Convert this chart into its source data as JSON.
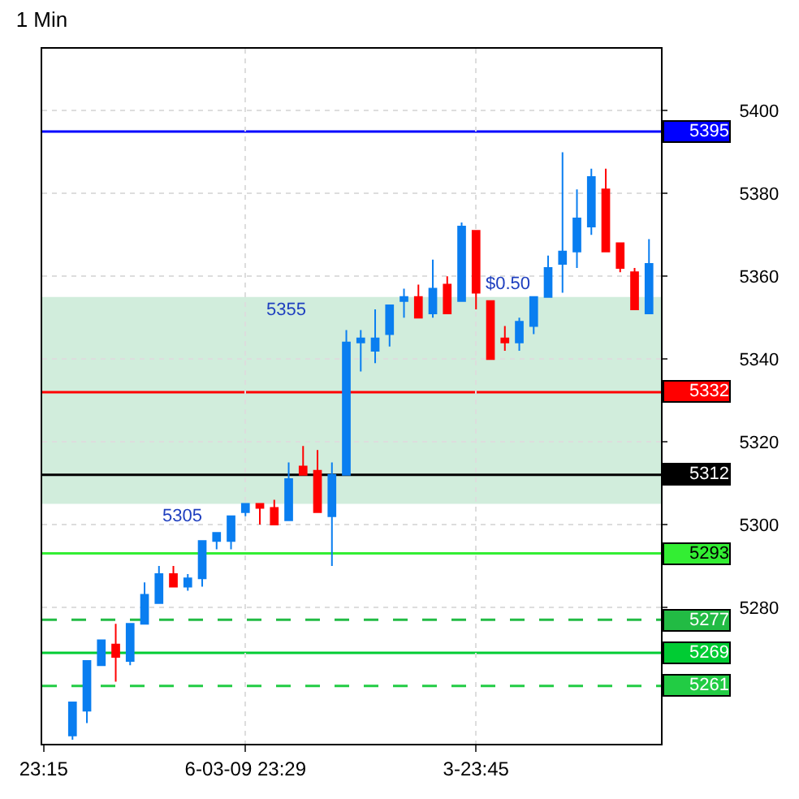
{
  "chart_data": {
    "type": "candlestick",
    "title": "1 Min",
    "categories": [
      "23:15",
      null,
      null,
      null,
      null,
      null,
      null,
      null,
      null,
      null,
      null,
      null,
      null,
      null,
      "6-03-09 23:29",
      null,
      null,
      null,
      null,
      null,
      null,
      null,
      null,
      null,
      null,
      null,
      null,
      null,
      null,
      null,
      "3-23:45",
      null,
      null,
      null,
      null,
      null,
      null,
      null,
      null,
      null,
      null,
      null,
      null
    ],
    "ohlc": [
      null,
      null,
      [
        5249,
        5257,
        5248,
        5257
      ],
      [
        5255,
        5267,
        5252,
        5267
      ],
      [
        5266,
        5272,
        5266,
        5272
      ],
      [
        5271,
        5276,
        5262,
        5268
      ],
      [
        5267,
        5276,
        5266,
        5276
      ],
      [
        5276,
        5286,
        5276,
        5283
      ],
      [
        5281,
        5290,
        5281,
        5288
      ],
      [
        5288,
        5290,
        5285,
        5285
      ],
      [
        5285,
        5288,
        5284,
        5287
      ],
      [
        5287,
        5296,
        5285,
        5296
      ],
      [
        5296,
        5298,
        5294,
        5298
      ],
      [
        5296,
        5302,
        5294,
        5302
      ],
      [
        5303,
        5305,
        5302,
        5305
      ],
      [
        5305,
        5305,
        5300,
        5304
      ],
      [
        5304,
        5306,
        5300,
        5300
      ],
      [
        5301,
        5315,
        5301,
        5311
      ],
      [
        5314,
        5319,
        5312,
        5312
      ],
      [
        5313,
        5318,
        5303,
        5303
      ],
      [
        5302,
        5315,
        5290,
        5312
      ],
      [
        5312,
        5347,
        5312,
        5344
      ],
      [
        5344,
        5347,
        5337,
        5345
      ],
      [
        5342,
        5352,
        5339,
        5345
      ],
      [
        5346,
        5353,
        5343,
        5353
      ],
      [
        5354,
        5357,
        5350,
        5355
      ],
      [
        5355,
        5358,
        5350,
        5350
      ],
      [
        5351,
        5364,
        5350,
        5357
      ],
      [
        5358,
        5360,
        5351,
        5351
      ],
      [
        5354,
        5373,
        5354,
        5372
      ],
      [
        5371,
        5371,
        5352,
        5356
      ],
      [
        5354,
        5354,
        5340,
        5340
      ],
      [
        5345,
        5348,
        5342,
        5344
      ],
      [
        5344,
        5350,
        5342,
        5349
      ],
      [
        5348,
        5355,
        5346,
        5355
      ],
      [
        5355,
        5365,
        5355,
        5362
      ],
      [
        5363,
        5390,
        5356,
        5366
      ],
      [
        5366,
        5381,
        5362,
        5374
      ],
      [
        5372,
        5386,
        5370,
        5384
      ],
      [
        5381,
        5386,
        5366,
        5366
      ],
      [
        5368,
        5368,
        5361,
        5362
      ],
      [
        5361,
        5362,
        5352,
        5352
      ],
      [
        5351,
        5369,
        5351,
        5363
      ]
    ],
    "colors": [
      null,
      null,
      "#0a7ef0",
      "#0a7ef0",
      "#0a7ef0",
      "#ff0000",
      "#0a7ef0",
      "#0a7ef0",
      "#0a7ef0",
      "#ff0000",
      "#0a7ef0",
      "#0a7ef0",
      "#0a7ef0",
      "#0a7ef0",
      "#0a7ef0",
      "#ff0000",
      "#ff0000",
      "#0a7ef0",
      "#ff0000",
      "#ff0000",
      "#0a7ef0",
      "#0a7ef0",
      "#0a7ef0",
      "#0a7ef0",
      "#0a7ef0",
      "#0a7ef0",
      "#ff0000",
      "#0a7ef0",
      "#ff0000",
      "#0a7ef0",
      "#ff0000",
      "#ff0000",
      "#ff0000",
      "#0a7ef0",
      "#0a7ef0",
      "#0a7ef0",
      "#0a7ef0",
      "#0a7ef0",
      "#0a7ef0",
      "#ff0000",
      "#ff0000",
      "#ff0000",
      "#0a7ef0"
    ],
    "ylim": [
      5247,
      5415
    ],
    "yticks": [
      5280,
      5300,
      5320,
      5340,
      5360,
      5380,
      5400
    ],
    "grid": true,
    "ref_lines": [
      {
        "axis": "y",
        "value": 5395,
        "label": "5395",
        "color": "#0000ff",
        "line_style": "solid"
      },
      {
        "axis": "y",
        "value": 5332,
        "label": "5332",
        "color": "#ff0000",
        "line_style": "solid"
      },
      {
        "axis": "y",
        "value": 5312,
        "label": "5312",
        "color": "#000000",
        "line_style": "solid"
      },
      {
        "axis": "y",
        "value": 5293,
        "label": "5293",
        "color": "#33ee33",
        "line_style": "solid"
      },
      {
        "axis": "y",
        "value": 5277,
        "label": "5277",
        "color": "#22bb44",
        "line_style": "dashed"
      },
      {
        "axis": "y",
        "value": 5269,
        "label": "5269",
        "color": "#00cc33",
        "line_style": "solid"
      },
      {
        "axis": "y",
        "value": 5261,
        "label": "5261",
        "color": "#22cc44",
        "line_style": "dashed"
      }
    ],
    "bands": [
      {
        "axis": "y",
        "from": 5305,
        "to": 5355,
        "color": "#9ad6b2"
      }
    ],
    "annotations": [
      {
        "text": "5355",
        "y": 5355
      },
      {
        "text": "5305",
        "y": 5305
      },
      {
        "text": "$0.50",
        "y": 5355
      }
    ]
  }
}
